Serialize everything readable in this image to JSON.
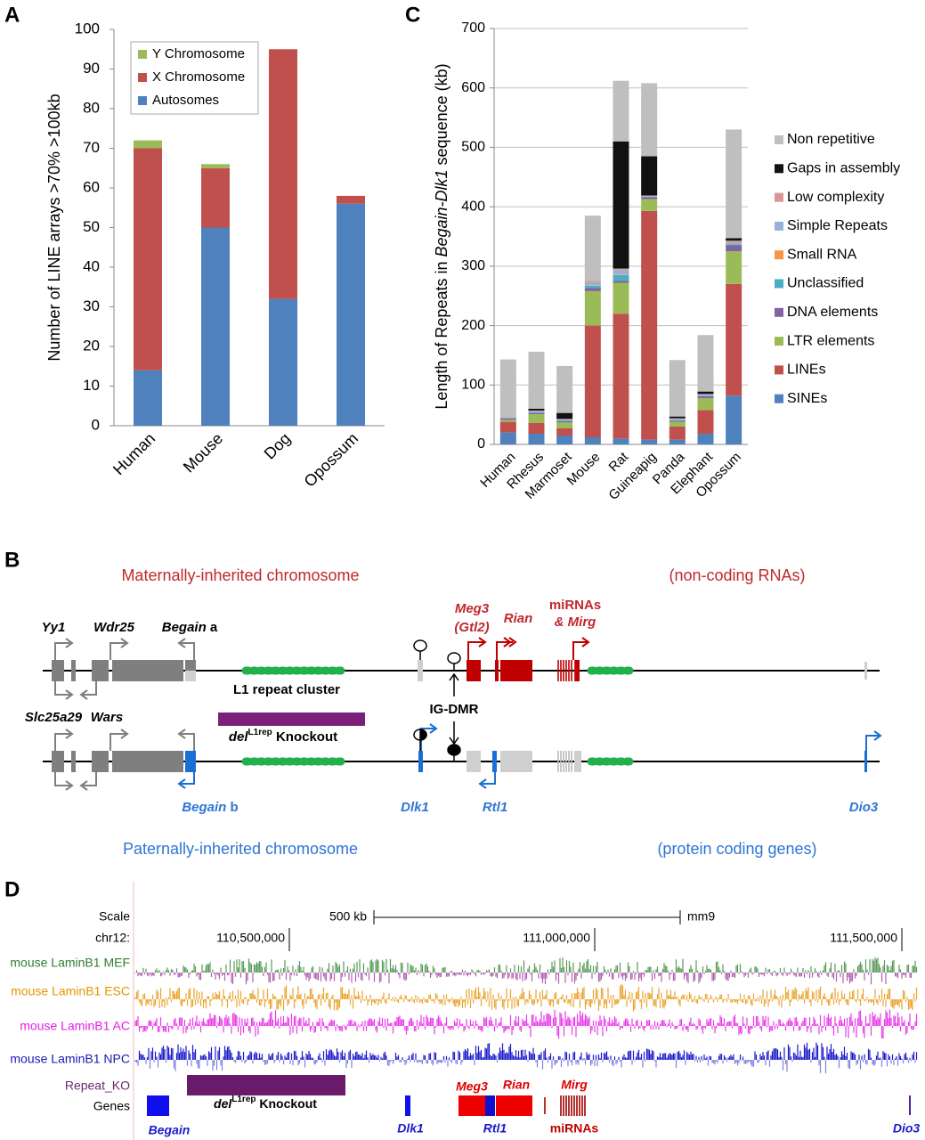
{
  "chart_data": [
    {
      "type": "bar",
      "stacked": true,
      "panel_label": "A",
      "ylabel": "Number of LINE arrays >70% >100kb",
      "categories": [
        "Human",
        "Mouse",
        "Dog",
        "Opossum"
      ],
      "series": [
        {
          "name": "Autosomes",
          "color": "#4f81bd",
          "values": [
            14,
            50,
            32,
            56
          ]
        },
        {
          "name": "X Chromosome",
          "color": "#c0504d",
          "values": [
            56,
            15,
            63,
            2
          ]
        },
        {
          "name": "Y Chromosome",
          "color": "#9bbb59",
          "values": [
            2,
            1,
            0,
            0
          ]
        }
      ],
      "ylim": [
        0,
        100
      ],
      "yticks": [
        0,
        10,
        20,
        30,
        40,
        50,
        60,
        70,
        80,
        90,
        100
      ],
      "grid": false,
      "legend": "top-left"
    },
    {
      "type": "bar",
      "stacked": true,
      "panel_label": "C",
      "ylabel_parts": [
        "Length of Repeats in ",
        "Begain-Dlk1",
        " sequence (kb)"
      ],
      "categories": [
        "Human",
        "Rhesus",
        "Marmoset",
        "Mouse",
        "Rat",
        "Guineapig",
        "Panda",
        "Elephant",
        "Opossum"
      ],
      "series": [
        {
          "name": "SINEs",
          "color": "#4f81bd",
          "values": [
            20,
            18,
            15,
            12,
            10,
            8,
            8,
            18,
            82
          ]
        },
        {
          "name": "LINEs",
          "color": "#c0504d",
          "values": [
            18,
            18,
            12,
            188,
            210,
            385,
            22,
            40,
            188
          ]
        },
        {
          "name": "LTR elements",
          "color": "#9bbb59",
          "values": [
            3,
            15,
            10,
            58,
            52,
            20,
            8,
            20,
            55
          ]
        },
        {
          "name": "DNA elements",
          "color": "#8064a2",
          "values": [
            1,
            2,
            2,
            5,
            3,
            3,
            2,
            3,
            10
          ]
        },
        {
          "name": "Unclassified",
          "color": "#4bacc6",
          "values": [
            0,
            1,
            1,
            4,
            10,
            1,
            1,
            1,
            2
          ]
        },
        {
          "name": "Small RNA",
          "color": "#f79646",
          "values": [
            0,
            0,
            0,
            1,
            1,
            0,
            0,
            0,
            1
          ]
        },
        {
          "name": "Simple Repeats",
          "color": "#95b3d7",
          "values": [
            1,
            2,
            2,
            5,
            8,
            1,
            2,
            2,
            3
          ]
        },
        {
          "name": "Low complexity",
          "color": "#d99694",
          "values": [
            0,
            1,
            1,
            2,
            2,
            1,
            1,
            1,
            2
          ]
        },
        {
          "name": "Gaps in assembly",
          "color": "#111111",
          "values": [
            1,
            3,
            10,
            0,
            214,
            66,
            3,
            4,
            4
          ]
        },
        {
          "name": "Non repetitive",
          "color": "#bfbfbf",
          "values": [
            99,
            96,
            79,
            110,
            102,
            123,
            95,
            95,
            183
          ]
        }
      ],
      "ylim": [
        0,
        700
      ],
      "yticks": [
        0,
        100,
        200,
        300,
        400,
        500,
        600,
        700
      ],
      "grid": true,
      "legend": "right"
    }
  ],
  "panel_b": {
    "label": "B",
    "maternal_title": "Maternally-inherited chromosome",
    "maternal_note": "(non-coding RNAs)",
    "paternal_title": "Paternally-inherited chromosome",
    "paternal_note": "(protein coding genes)",
    "yy1": "Yy1",
    "wdr25": "Wdr25",
    "begain": "Begain",
    "suffix_a": " a",
    "suffix_b": " b",
    "meg3": "Meg3",
    "gtl2": "(Gtl2)",
    "rian": "Rian",
    "mirnas": "miRNAs",
    "mirg": "& Mirg",
    "l1_cluster": "L1 repeat cluster",
    "ig_dmr": "IG-DMR",
    "slc25a29": "Slc25a29",
    "wars": "Wars",
    "del": "del",
    "l1rep": "L1rep",
    "knockout": " Knockout",
    "dlk1": "Dlk1",
    "rtl1": "Rtl1",
    "dio3": "Dio3"
  },
  "panel_d": {
    "label": "D",
    "scale": "Scale",
    "scale_len": "500 kb",
    "assembly": "mm9",
    "chrom": "chr12:",
    "positions": [
      "110,500,000",
      "111,000,000",
      "111,500,000"
    ],
    "tracks": [
      "mouse LaminB1 MEF",
      "mouse LaminB1 ESC",
      "mouse LaminB1 AC",
      "mouse LaminB1 NPC"
    ],
    "repeat_ko": "Repeat_KO",
    "genes": "Genes",
    "del": "del",
    "l1rep": "L1rep",
    "knockout": " Knockout",
    "meg3": "Meg3",
    "rian": "Rian",
    "mirg": "Mirg",
    "begain": "Begain",
    "dlk1": "Dlk1",
    "rtl1": "Rtl1",
    "mirnas": "miRNAs",
    "dio3": "Dio3"
  }
}
